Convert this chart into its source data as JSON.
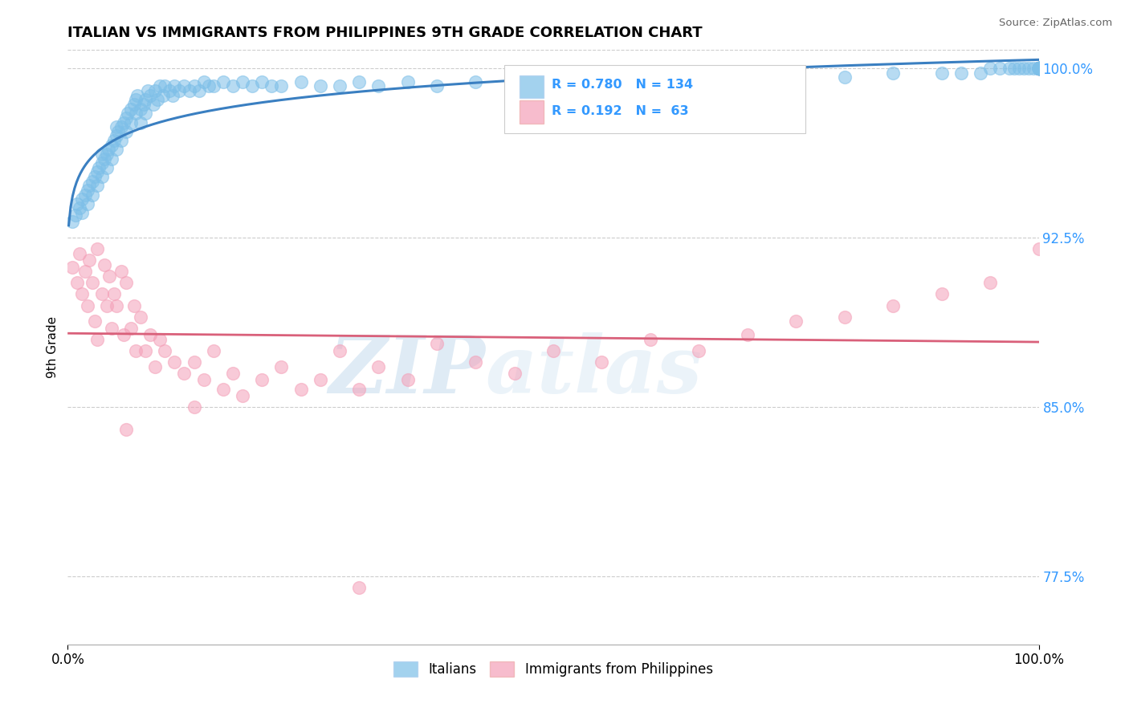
{
  "title": "ITALIAN VS IMMIGRANTS FROM PHILIPPINES 9TH GRADE CORRELATION CHART",
  "source_text": "Source: ZipAtlas.com",
  "ylabel": "9th Grade",
  "xlim": [
    0.0,
    1.0
  ],
  "ylim": [
    0.745,
    1.008
  ],
  "yticks": [
    0.775,
    0.85,
    0.925,
    1.0
  ],
  "ytick_labels": [
    "77.5%",
    "85.0%",
    "92.5%",
    "100.0%"
  ],
  "xticks": [
    0.0,
    1.0
  ],
  "xtick_labels": [
    "0.0%",
    "100.0%"
  ],
  "blue_color": "#7dbfe8",
  "pink_color": "#f4a0b8",
  "trend_blue": "#3a7fc1",
  "trend_pink": "#d9607a",
  "legend_R_blue": "0.780",
  "legend_N_blue": "134",
  "legend_R_pink": "0.192",
  "legend_N_pink": " 63",
  "label_italians": "Italians",
  "label_philippines": "Immigrants from Philippines",
  "watermark_zip": "ZIP",
  "watermark_atlas": "atlas",
  "blue_scatter_x": [
    0.005,
    0.008,
    0.01,
    0.012,
    0.015,
    0.015,
    0.018,
    0.02,
    0.02,
    0.022,
    0.025,
    0.025,
    0.028,
    0.03,
    0.03,
    0.032,
    0.035,
    0.035,
    0.035,
    0.038,
    0.04,
    0.04,
    0.042,
    0.045,
    0.045,
    0.048,
    0.05,
    0.05,
    0.05,
    0.052,
    0.055,
    0.055,
    0.058,
    0.06,
    0.06,
    0.062,
    0.065,
    0.065,
    0.068,
    0.07,
    0.07,
    0.072,
    0.075,
    0.075,
    0.078,
    0.08,
    0.08,
    0.082,
    0.085,
    0.088,
    0.09,
    0.092,
    0.095,
    0.098,
    0.1,
    0.105,
    0.108,
    0.11,
    0.115,
    0.12,
    0.125,
    0.13,
    0.135,
    0.14,
    0.145,
    0.15,
    0.16,
    0.17,
    0.18,
    0.19,
    0.2,
    0.21,
    0.22,
    0.24,
    0.26,
    0.28,
    0.3,
    0.32,
    0.35,
    0.38,
    0.42,
    0.46,
    0.5,
    0.54,
    0.58,
    0.62,
    0.66,
    0.7,
    0.75,
    0.8,
    0.85,
    0.9,
    0.92,
    0.94,
    0.95,
    0.96,
    0.97,
    0.975,
    0.98,
    0.985,
    0.99,
    0.995,
    1.0,
    1.0,
    1.0,
    1.0,
    1.0,
    1.0,
    1.0,
    1.0,
    1.0,
    1.0,
    1.0,
    1.0,
    1.0,
    1.0,
    1.0,
    1.0,
    1.0,
    1.0,
    1.0,
    1.0,
    1.0,
    1.0,
    1.0,
    1.0,
    1.0,
    1.0,
    1.0,
    1.0,
    1.0,
    1.0,
    1.0,
    1.0
  ],
  "blue_scatter_y": [
    0.932,
    0.935,
    0.94,
    0.938,
    0.942,
    0.936,
    0.944,
    0.946,
    0.94,
    0.948,
    0.95,
    0.944,
    0.952,
    0.954,
    0.948,
    0.956,
    0.958,
    0.952,
    0.962,
    0.96,
    0.962,
    0.956,
    0.964,
    0.966,
    0.96,
    0.968,
    0.97,
    0.964,
    0.974,
    0.972,
    0.974,
    0.968,
    0.976,
    0.978,
    0.972,
    0.98,
    0.982,
    0.976,
    0.984,
    0.986,
    0.98,
    0.988,
    0.982,
    0.976,
    0.984,
    0.986,
    0.98,
    0.99,
    0.988,
    0.984,
    0.99,
    0.986,
    0.992,
    0.988,
    0.992,
    0.99,
    0.988,
    0.992,
    0.99,
    0.992,
    0.99,
    0.992,
    0.99,
    0.994,
    0.992,
    0.992,
    0.994,
    0.992,
    0.994,
    0.992,
    0.994,
    0.992,
    0.992,
    0.994,
    0.992,
    0.992,
    0.994,
    0.992,
    0.994,
    0.992,
    0.994,
    0.994,
    0.994,
    0.994,
    0.994,
    0.996,
    0.996,
    0.996,
    0.996,
    0.996,
    0.998,
    0.998,
    0.998,
    0.998,
    1.0,
    1.0,
    1.0,
    1.0,
    1.0,
    1.0,
    1.0,
    1.0,
    1.0,
    1.0,
    1.0,
    1.0,
    1.0,
    1.0,
    1.0,
    1.0,
    1.0,
    1.0,
    1.0,
    1.0,
    1.0,
    1.0,
    1.0,
    1.0,
    1.0,
    1.0,
    1.0,
    1.0,
    1.0,
    1.0,
    1.0,
    1.0,
    1.0,
    1.0,
    1.0,
    1.0,
    1.0,
    1.0,
    1.0,
    1.0
  ],
  "pink_scatter_x": [
    0.005,
    0.01,
    0.012,
    0.015,
    0.018,
    0.02,
    0.022,
    0.025,
    0.028,
    0.03,
    0.035,
    0.038,
    0.04,
    0.043,
    0.045,
    0.048,
    0.05,
    0.055,
    0.058,
    0.06,
    0.065,
    0.068,
    0.07,
    0.075,
    0.08,
    0.085,
    0.09,
    0.095,
    0.1,
    0.11,
    0.12,
    0.13,
    0.14,
    0.15,
    0.16,
    0.17,
    0.18,
    0.2,
    0.22,
    0.24,
    0.26,
    0.28,
    0.3,
    0.32,
    0.35,
    0.38,
    0.42,
    0.46,
    0.5,
    0.55,
    0.6,
    0.65,
    0.7,
    0.75,
    0.8,
    0.85,
    0.9,
    0.95,
    1.0,
    0.03,
    0.06,
    0.13,
    0.3
  ],
  "pink_scatter_y": [
    0.912,
    0.905,
    0.918,
    0.9,
    0.91,
    0.895,
    0.915,
    0.905,
    0.888,
    0.92,
    0.9,
    0.913,
    0.895,
    0.908,
    0.885,
    0.9,
    0.895,
    0.91,
    0.882,
    0.905,
    0.885,
    0.895,
    0.875,
    0.89,
    0.875,
    0.882,
    0.868,
    0.88,
    0.875,
    0.87,
    0.865,
    0.87,
    0.862,
    0.875,
    0.858,
    0.865,
    0.855,
    0.862,
    0.868,
    0.858,
    0.862,
    0.875,
    0.858,
    0.868,
    0.862,
    0.878,
    0.87,
    0.865,
    0.875,
    0.87,
    0.88,
    0.875,
    0.882,
    0.888,
    0.89,
    0.895,
    0.9,
    0.905,
    0.92,
    0.88,
    0.84,
    0.85,
    0.77
  ]
}
